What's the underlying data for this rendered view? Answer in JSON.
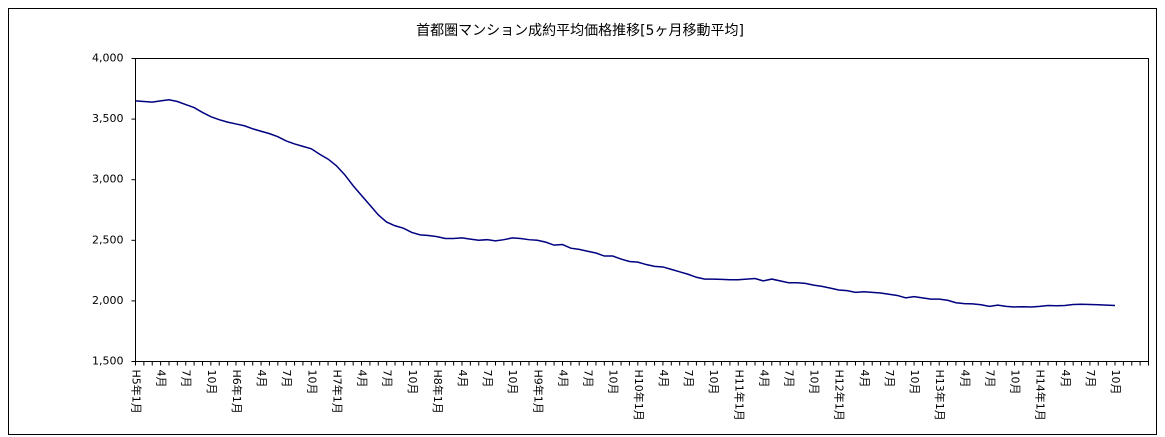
{
  "chart_data": {
    "type": "line",
    "title": "首都圏マンション成約平均価格推移[5ヶ月移動平均]",
    "categories": [
      "H5年1月",
      null,
      null,
      "4月",
      null,
      null,
      "7月",
      null,
      null,
      "10月",
      null,
      null,
      "H6年1月",
      null,
      null,
      "4月",
      null,
      null,
      "7月",
      null,
      null,
      "10月",
      null,
      null,
      "H7年1月",
      null,
      null,
      "4月",
      null,
      null,
      "7月",
      null,
      null,
      "10月",
      null,
      null,
      "H8年1月",
      null,
      null,
      "4月",
      null,
      null,
      "7月",
      null,
      null,
      "10月",
      null,
      null,
      "H9年1月",
      null,
      null,
      "4月",
      null,
      null,
      "7月",
      null,
      null,
      "10月",
      null,
      null,
      "H10年1月",
      null,
      null,
      "4月",
      null,
      null,
      "7月",
      null,
      null,
      "10月",
      null,
      null,
      "H11年1月",
      null,
      null,
      "4月",
      null,
      null,
      "7月",
      null,
      null,
      "10月",
      null,
      null,
      "H12年1月",
      null,
      null,
      "4月",
      null,
      null,
      "7月",
      null,
      null,
      "10月",
      null,
      null,
      "H13年1月",
      null,
      null,
      "4月",
      null,
      null,
      "7月",
      null,
      null,
      "10月",
      null,
      null,
      "H14年1月",
      null,
      null,
      "4月",
      null,
      null,
      "7月",
      null,
      null,
      "10月",
      null,
      null,
      null,
      null
    ],
    "values": [
      3650,
      3645,
      3640,
      3650,
      3660,
      3645,
      3620,
      3595,
      3555,
      3520,
      3495,
      3475,
      3460,
      3445,
      3420,
      3400,
      3380,
      3355,
      3320,
      3295,
      3275,
      3255,
      3210,
      3170,
      3115,
      3040,
      2950,
      2870,
      2790,
      2710,
      2650,
      2620,
      2600,
      2565,
      2545,
      2540,
      2530,
      2515,
      2515,
      2520,
      2510,
      2500,
      2505,
      2495,
      2505,
      2520,
      2515,
      2505,
      2500,
      2485,
      2460,
      2465,
      2435,
      2425,
      2410,
      2395,
      2370,
      2370,
      2345,
      2325,
      2320,
      2300,
      2285,
      2280,
      2260,
      2240,
      2220,
      2195,
      2180,
      2180,
      2178,
      2175,
      2175,
      2180,
      2185,
      2165,
      2180,
      2165,
      2150,
      2150,
      2145,
      2130,
      2120,
      2105,
      2090,
      2085,
      2070,
      2075,
      2070,
      2065,
      2055,
      2045,
      2025,
      2035,
      2025,
      2015,
      2015,
      2005,
      1985,
      1978,
      1975,
      1968,
      1955,
      1965,
      1955,
      1950,
      1952,
      1950,
      1955,
      1962,
      1960,
      1962,
      1970,
      1972,
      1970,
      1968,
      1965,
      1962,
      null,
      null,
      null,
      null
    ],
    "color": "#000080",
    "ylim": [
      1500,
      4000
    ],
    "yticks": [
      {
        "value": 1500,
        "label": "1,500"
      },
      {
        "value": 2000,
        "label": "2,000"
      },
      {
        "value": 2500,
        "label": "2,500"
      },
      {
        "value": 3000,
        "label": "3,000"
      },
      {
        "value": 3500,
        "label": "3,500"
      },
      {
        "value": 4000,
        "label": "4,000"
      }
    ]
  }
}
